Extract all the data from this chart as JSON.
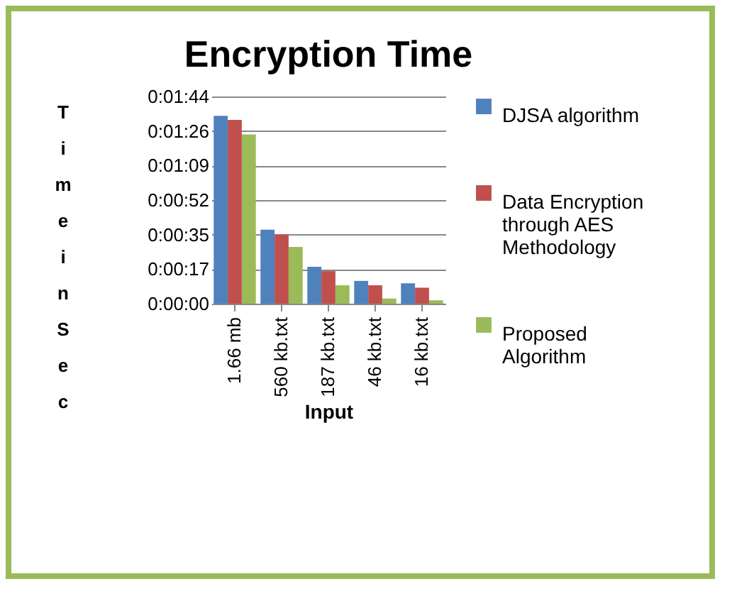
{
  "chart_data": {
    "type": "bar",
    "title": "Encryption Time",
    "xlabel": "Input",
    "ylabel": "Time in Sec",
    "categories": [
      "1.66 mb",
      "560 kb.txt",
      "187 kb.txt",
      "46 kb.txt",
      "16 kb.txt"
    ],
    "series": [
      {
        "name": "DJSA algorithm",
        "color": "#4f81bd",
        "values": [
          94,
          37,
          18.5,
          11.4,
          10.2
        ]
      },
      {
        "name": "Data Encryption through AES Methodology",
        "color": "#c0504d",
        "values": [
          92,
          34.6,
          16.3,
          9.2,
          8
        ]
      },
      {
        "name": "Proposed Algorithm",
        "color": "#9bbb59",
        "values": [
          84.7,
          28.4,
          9.2,
          2.6,
          1.7
        ]
      }
    ],
    "ylim": [
      0,
      103.68
    ],
    "yticks": [
      {
        "value": 0,
        "label": "0:00:00"
      },
      {
        "value": 17.28,
        "label": "0:00:17"
      },
      {
        "value": 34.56,
        "label": "0:00:35"
      },
      {
        "value": 51.84,
        "label": "0:00:52"
      },
      {
        "value": 69.12,
        "label": "0:01:09"
      },
      {
        "value": 86.4,
        "label": "0:01:26"
      },
      {
        "value": 103.68,
        "label": "0:01:44"
      }
    ],
    "grid": "y",
    "legend": "right"
  }
}
